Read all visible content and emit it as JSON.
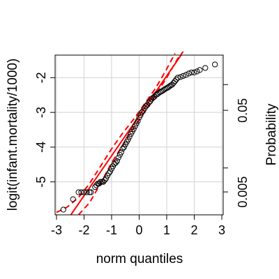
{
  "chart_data": {
    "type": "scatter",
    "title": "",
    "xlabel": "norm quantiles",
    "ylabel": "logit(infant.mortality/1000)",
    "y2label": "Probability",
    "xlim": [
      -3.05,
      3.05
    ],
    "ylim": [
      -5.95,
      -1.35
    ],
    "x_ticks": [
      -3,
      -2,
      -1,
      0,
      1,
      2,
      3
    ],
    "x_tick_labels": [
      "-3",
      "-2",
      "-1",
      "0",
      "1",
      "2",
      "3"
    ],
    "y_ticks": [
      -5,
      -4,
      -3,
      -2
    ],
    "y_tick_labels": [
      "-5",
      "-4",
      "-3",
      "-2"
    ],
    "y2_ticks": [
      -5.29,
      -4.6,
      -2.94,
      -2.2
    ],
    "y2_labeled": [
      {
        "value": -2.944,
        "label": "0.05"
      },
      {
        "value": -5.293,
        "label": "0.005"
      }
    ],
    "grid": true,
    "reference_line": {
      "intercept": -3.1,
      "slope": 1.15,
      "color": "#ff0000"
    },
    "confidence_envelope": {
      "color": "#ff0000",
      "lower": [
        [
          -2.2,
          -5.95
        ],
        [
          -1.8,
          -5.6
        ],
        [
          -1.4,
          -5.05
        ],
        [
          -1.0,
          -4.45
        ],
        [
          -0.6,
          -3.95
        ],
        [
          -0.2,
          -3.45
        ],
        [
          0.2,
          -2.98
        ],
        [
          0.6,
          -2.5
        ],
        [
          1.0,
          -2.0
        ],
        [
          1.4,
          -1.45
        ],
        [
          1.6,
          -1.25
        ]
      ],
      "upper": [
        [
          -3.0,
          -5.88
        ],
        [
          -2.6,
          -5.72
        ],
        [
          -2.2,
          -5.45
        ],
        [
          -1.8,
          -5.05
        ],
        [
          -1.4,
          -4.55
        ],
        [
          -1.0,
          -4.05
        ],
        [
          -0.6,
          -3.6
        ],
        [
          -0.2,
          -3.2
        ],
        [
          0.2,
          -2.75
        ],
        [
          0.6,
          -2.3
        ],
        [
          1.0,
          -1.75
        ],
        [
          1.3,
          -1.3
        ]
      ]
    },
    "series": [
      {
        "marker": "open-circle",
        "x": [
          -2.75,
          -2.4,
          -2.2,
          -2.1,
          -2.0,
          -1.9,
          -1.8,
          -1.75,
          -1.6,
          -1.55,
          -1.5,
          -1.45,
          -1.4,
          -1.35,
          -1.3,
          -1.25,
          -1.2,
          -1.15,
          -1.1,
          -1.05,
          -1.0,
          -0.95,
          -0.9,
          -0.85,
          -0.8,
          -0.75,
          -0.7,
          -0.65,
          -0.6,
          -0.55,
          -0.5,
          -0.45,
          -0.4,
          -0.35,
          -0.3,
          -0.25,
          -0.2,
          -0.15,
          -0.1,
          -0.05,
          0.0,
          0.05,
          0.1,
          0.15,
          0.2,
          0.25,
          0.3,
          0.35,
          0.4,
          0.45,
          0.5,
          0.55,
          0.6,
          0.65,
          0.7,
          0.75,
          0.8,
          0.85,
          0.9,
          0.95,
          1.0,
          1.05,
          1.1,
          1.15,
          1.2,
          1.25,
          1.3,
          1.35,
          1.4,
          1.5,
          1.6,
          1.7,
          1.8,
          1.9,
          2.0,
          2.1,
          2.2,
          2.4,
          2.75
        ],
        "y": [
          -5.8,
          -5.5,
          -5.3,
          -5.3,
          -5.3,
          -5.3,
          -5.3,
          -5.3,
          -5.15,
          -5.1,
          -5.05,
          -5.05,
          -5.0,
          -5.0,
          -5.0,
          -4.95,
          -4.9,
          -4.82,
          -4.75,
          -4.7,
          -4.62,
          -4.55,
          -4.48,
          -4.45,
          -4.4,
          -4.3,
          -4.22,
          -4.15,
          -4.05,
          -4.0,
          -3.92,
          -3.85,
          -3.78,
          -3.7,
          -3.62,
          -3.55,
          -3.48,
          -3.4,
          -3.32,
          -3.25,
          -3.15,
          -3.08,
          -3.0,
          -2.95,
          -2.88,
          -2.82,
          -2.78,
          -2.72,
          -2.68,
          -2.62,
          -2.58,
          -2.55,
          -2.5,
          -2.48,
          -2.45,
          -2.42,
          -2.4,
          -2.38,
          -2.35,
          -2.32,
          -2.3,
          -2.28,
          -2.25,
          -2.22,
          -2.2,
          -2.15,
          -2.1,
          -2.05,
          -2.0,
          -1.98,
          -1.95,
          -1.92,
          -1.88,
          -1.85,
          -1.85,
          -1.82,
          -1.78,
          -1.72,
          -1.62
        ]
      }
    ]
  }
}
